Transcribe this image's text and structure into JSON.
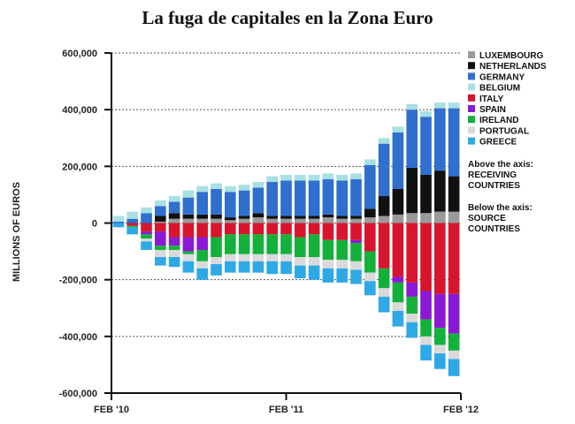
{
  "title": "La fuga de capitales en la Zona Euro",
  "chart_data": {
    "type": "bar",
    "stacked": true,
    "ylabel": "MILLIONS OF EUROS",
    "ylim": [
      -600000,
      600000
    ],
    "y_ticks": [
      -600000,
      -400000,
      -200000,
      0,
      200000,
      400000,
      600000
    ],
    "y_tick_labels": [
      "-600,000",
      "-400,000",
      "-200,000",
      "0",
      "200,000",
      "400,000",
      "600,000"
    ],
    "x_tick_labels": [
      {
        "index": 0,
        "label": "FEB '10"
      },
      {
        "index": 12,
        "label": "FEB '11"
      },
      {
        "index": 24,
        "label": "FEB '12"
      }
    ],
    "categories": [
      "Feb 2010",
      "Mar 2010",
      "Apr 2010",
      "May 2010",
      "Jun 2010",
      "Jul 2010",
      "Aug 2010",
      "Sep 2010",
      "Oct 2010",
      "Nov 2010",
      "Dec 2010",
      "Jan 2011",
      "Feb 2011",
      "Mar 2011",
      "Apr 2011",
      "May 2011",
      "Jun 2011",
      "Jul 2011",
      "Aug 2011",
      "Sep 2011",
      "Oct 2011",
      "Nov 2011",
      "Dec 2011",
      "Jan 2012",
      "Feb 2012"
    ],
    "grid": "horizontal dotted",
    "legend_position": "right",
    "series": [
      {
        "name": "LUXEMBOURG",
        "color": "#9a9a9a",
        "values": [
          0,
          0,
          0,
          5000,
          15000,
          15000,
          15000,
          15000,
          10000,
          15000,
          20000,
          15000,
          15000,
          15000,
          15000,
          20000,
          15000,
          15000,
          20000,
          25000,
          30000,
          35000,
          35000,
          40000,
          40000
        ]
      },
      {
        "name": "NETHERLANDS",
        "color": "#111111",
        "values": [
          0,
          0,
          0,
          20000,
          20000,
          15000,
          15000,
          15000,
          10000,
          10000,
          15000,
          10000,
          10000,
          10000,
          10000,
          10000,
          10000,
          10000,
          30000,
          70000,
          90000,
          160000,
          135000,
          145000,
          125000
        ]
      },
      {
        "name": "GERMANY",
        "color": "#2f6fcd",
        "values": [
          5000,
          15000,
          35000,
          35000,
          40000,
          60000,
          80000,
          90000,
          90000,
          90000,
          90000,
          120000,
          125000,
          125000,
          125000,
          125000,
          125000,
          130000,
          155000,
          185000,
          200000,
          205000,
          205000,
          220000,
          240000
        ]
      },
      {
        "name": "BELGIUM",
        "color": "#a8e0e4",
        "values": [
          20000,
          25000,
          20000,
          20000,
          20000,
          25000,
          20000,
          20000,
          20000,
          20000,
          20000,
          20000,
          20000,
          20000,
          20000,
          20000,
          20000,
          20000,
          20000,
          20000,
          20000,
          20000,
          20000,
          20000,
          20000
        ]
      },
      {
        "name": "ITALY",
        "color": "#d7152e",
        "values": [
          0,
          -10000,
          -30000,
          -30000,
          -50000,
          -50000,
          -50000,
          -50000,
          -40000,
          -40000,
          -40000,
          -40000,
          -40000,
          -50000,
          -40000,
          -60000,
          -60000,
          -60000,
          -100000,
          -160000,
          -190000,
          -210000,
          -240000,
          -250000,
          -250000
        ]
      },
      {
        "name": "SPAIN",
        "color": "#8a19d4",
        "values": [
          0,
          0,
          -10000,
          -50000,
          -30000,
          -50000,
          -45000,
          0,
          0,
          0,
          0,
          0,
          0,
          0,
          0,
          0,
          0,
          -10000,
          0,
          0,
          -20000,
          -50000,
          -100000,
          -120000,
          -140000
        ]
      },
      {
        "name": "IRELAND",
        "color": "#13b13a",
        "values": [
          0,
          -5000,
          -15000,
          -15000,
          -15000,
          -10000,
          -40000,
          -70000,
          -70000,
          -70000,
          -70000,
          -70000,
          -70000,
          -70000,
          -80000,
          -70000,
          -70000,
          -65000,
          -75000,
          -70000,
          -70000,
          -60000,
          -60000,
          -60000,
          -60000
        ]
      },
      {
        "name": "PORTUGAL",
        "color": "#dadada",
        "values": [
          0,
          0,
          -10000,
          -25000,
          -25000,
          -25000,
          -25000,
          -25000,
          -25000,
          -25000,
          -25000,
          -25000,
          -25000,
          -30000,
          -30000,
          -30000,
          -30000,
          -30000,
          -30000,
          -30000,
          -30000,
          -30000,
          -30000,
          -30000,
          -30000
        ]
      },
      {
        "name": "GREECE",
        "color": "#2fa8e6",
        "values": [
          -15000,
          -25000,
          -30000,
          -30000,
          -35000,
          -40000,
          -40000,
          -40000,
          -40000,
          -40000,
          -40000,
          -45000,
          -45000,
          -45000,
          -50000,
          -50000,
          -50000,
          -50000,
          -50000,
          -55000,
          -55000,
          -55000,
          -55000,
          -55000,
          -60000
        ]
      }
    ],
    "annotations": [
      [
        "Above the axis:",
        "RECEIVING",
        "COUNTRIES"
      ],
      [
        "Below the axis:",
        "SOURCE",
        "COUNTRIES"
      ]
    ]
  }
}
